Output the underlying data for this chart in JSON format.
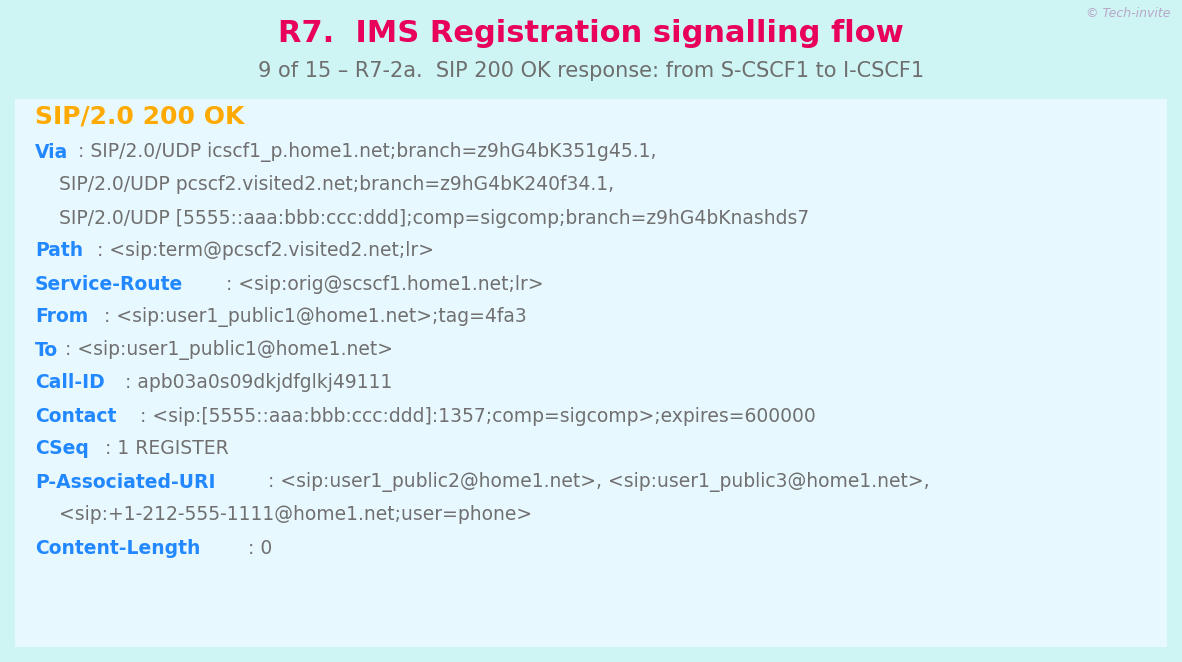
{
  "bg_color": "#cef4f4",
  "title": "R7.  IMS Registration signalling flow",
  "title_color": "#e8005a",
  "subtitle": "9 of 15 – R7-2a.  SIP 200 OK response: from S-CSCF1 to I-CSCF1",
  "subtitle_color": "#6e6e6e",
  "watermark": "© Tech-invite",
  "watermark_color": "#b8a8c8",
  "sip_status": "SIP/2.0 200 OK",
  "sip_status_color": "#ffaa00",
  "content_bg": "#e8f8ff",
  "label_color": "#2288ff",
  "value_color": "#707070",
  "lines": [
    {
      "label": "Via",
      "value": ": SIP/2.0/UDP icscf1_p.home1.net;branch=z9hG4bK351g45.1,"
    },
    {
      "label": "",
      "value": "    SIP/2.0/UDP pcscf2.visited2.net;branch=z9hG4bK240f34.1,"
    },
    {
      "label": "",
      "value": "    SIP/2.0/UDP [5555::aaa:bbb:ccc:ddd];comp=sigcomp;branch=z9hG4bKnashds7"
    },
    {
      "label": "Path",
      "value": ": <sip:term@pcscf2.visited2.net;lr>"
    },
    {
      "label": "Service-Route",
      "value": ": <sip:orig@scscf1.home1.net;lr>"
    },
    {
      "label": "From",
      "value": ": <sip:user1_public1@home1.net>;tag=4fa3"
    },
    {
      "label": "To",
      "value": ": <sip:user1_public1@home1.net>"
    },
    {
      "label": "Call-ID",
      "value": ": apb03a0s09dkjdfglkj49111"
    },
    {
      "label": "Contact",
      "value": ": <sip:[5555::aaa:bbb:ccc:ddd]:1357;comp=sigcomp>;expires=600000"
    },
    {
      "label": "CSeq",
      "value": ": 1 REGISTER"
    },
    {
      "label": "P-Associated-URI",
      "value": ": <sip:user1_public2@home1.net>, <sip:user1_public3@home1.net>,"
    },
    {
      "label": "",
      "value": "    <sip:+1-212-555-1111@home1.net;user=phone>"
    },
    {
      "label": "Content-Length",
      "value": ": 0"
    }
  ],
  "title_fontsize": 22,
  "subtitle_fontsize": 15,
  "sip_status_fontsize": 18,
  "content_fontsize": 13.5,
  "watermark_fontsize": 9,
  "fig_width": 11.82,
  "fig_height": 6.62,
  "dpi": 100
}
